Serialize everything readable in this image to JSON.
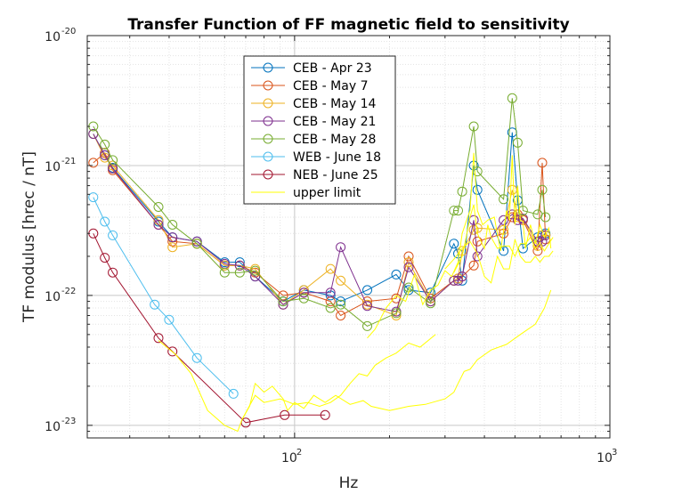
{
  "chart_data": {
    "type": "line",
    "title": "Transfer Function of FF magnetic field to sensitivity",
    "xlabel": "Hz",
    "ylabel": "TF modulus [hrec / nT]",
    "xscale": "log",
    "yscale": "log",
    "xlim": [
      22,
      1000
    ],
    "ylim": [
      8e-24,
      1e-20
    ],
    "grid": true,
    "minor_grid": true,
    "legend_position": "top-center",
    "x_ticks": [
      {
        "value": 100,
        "base": "10",
        "exp": "2"
      },
      {
        "value": 1000,
        "base": "10",
        "exp": "3"
      }
    ],
    "y_ticks": [
      {
        "value": 1e-20,
        "base": "10",
        "exp": "-20"
      },
      {
        "value": 1e-21,
        "base": "10",
        "exp": "-21"
      },
      {
        "value": 1e-22,
        "base": "10",
        "exp": "-22"
      },
      {
        "value": 1e-23,
        "base": "10",
        "exp": "-23"
      }
    ],
    "series": [
      {
        "name": "CEB - Apr 23",
        "color": "#0072BD",
        "markers": true,
        "x": [
          23,
          25,
          26.5,
          37,
          41,
          49,
          60,
          67,
          75,
          92,
          107,
          130,
          140,
          170,
          210,
          230,
          270,
          320,
          330,
          340,
          370,
          380,
          460,
          490,
          510,
          530,
          590,
          610,
          625
        ],
        "y": [
          1.75e-21,
          1.2e-21,
          9.6e-22,
          3.7e-22,
          2.8e-22,
          2.6e-22,
          1.8e-22,
          1.8e-22,
          1.4e-22,
          9e-23,
          1.1e-22,
          1e-22,
          9e-23,
          1.1e-22,
          1.45e-22,
          1.1e-22,
          1.05e-22,
          2.5e-22,
          2.1e-22,
          1.3e-22,
          1e-21,
          6.5e-22,
          2.2e-22,
          1.8e-21,
          5.4e-22,
          2.3e-22,
          2.8e-22,
          2.9e-22,
          3e-22
        ]
      },
      {
        "name": "CEB - May 7",
        "color": "#D95319",
        "markers": true,
        "x": [
          23,
          25,
          26.5,
          37,
          41,
          49,
          60,
          67,
          75,
          92,
          107,
          130,
          140,
          170,
          210,
          230,
          270,
          320,
          330,
          340,
          370,
          380,
          460,
          490,
          510,
          530,
          590,
          610,
          625
        ],
        "y": [
          1.05e-21,
          1.25e-21,
          9.2e-22,
          3.5e-22,
          2.6e-22,
          2.5e-22,
          1.7e-22,
          1.7e-22,
          1.5e-22,
          1e-22,
          1.05e-22,
          9e-23,
          7e-23,
          9e-23,
          9.5e-23,
          2e-22,
          9.5e-23,
          1.3e-22,
          1.35e-22,
          1.4e-22,
          1.7e-22,
          2.6e-22,
          3e-22,
          4e-22,
          4.2e-22,
          3.8e-22,
          2.2e-22,
          1.05e-21,
          2.7e-22
        ]
      },
      {
        "name": "CEB - May 14",
        "color": "#EDB120",
        "markers": true,
        "x": [
          23,
          25,
          26.5,
          37,
          41,
          49,
          60,
          67,
          75,
          92,
          107,
          130,
          140,
          170,
          210,
          230,
          270,
          320,
          330,
          340,
          370,
          380,
          460,
          490,
          510,
          530,
          590,
          610,
          625
        ],
        "y": [
          1.75e-21,
          1.15e-21,
          1e-21,
          3.8e-22,
          2.35e-22,
          2.5e-22,
          1.7e-22,
          1.7e-22,
          1.6e-22,
          8.5e-23,
          1.1e-22,
          1.6e-22,
          1.3e-22,
          8.5e-23,
          7e-23,
          1.8e-22,
          9e-23,
          1.3e-22,
          1.35e-22,
          2.2e-22,
          3.2e-22,
          3.3e-22,
          3.2e-22,
          6.5e-22,
          4e-22,
          3.9e-22,
          2.4e-22,
          2.9e-22,
          2.9e-22
        ]
      },
      {
        "name": "CEB - May 21",
        "color": "#7E2F8E",
        "markers": true,
        "x": [
          23,
          25,
          26.5,
          37,
          41,
          49,
          60,
          67,
          75,
          92,
          107,
          130,
          140,
          170,
          210,
          230,
          270,
          320,
          330,
          340,
          370,
          380,
          460,
          490,
          510,
          530,
          590,
          610,
          625
        ],
        "y": [
          1.75e-21,
          1.2e-21,
          9.5e-22,
          3.5e-22,
          2.8e-22,
          2.6e-22,
          1.75e-22,
          1.7e-22,
          1.4e-22,
          8.5e-23,
          1.05e-22,
          1.05e-22,
          2.35e-22,
          8.3e-23,
          7.5e-23,
          1.65e-22,
          9e-23,
          1.3e-22,
          1.3e-22,
          1.4e-22,
          3.8e-22,
          2e-22,
          3.8e-22,
          4.2e-22,
          3.8e-22,
          3.9e-22,
          2.6e-22,
          2.6e-22,
          2.9e-22
        ]
      },
      {
        "name": "CEB - May 28",
        "color": "#77AC30",
        "markers": true,
        "x": [
          23,
          25,
          26.5,
          37,
          41,
          49,
          60,
          67,
          75,
          92,
          107,
          130,
          140,
          170,
          210,
          230,
          270,
          320,
          330,
          340,
          370,
          380,
          460,
          490,
          510,
          530,
          590,
          610,
          625
        ],
        "y": [
          2e-21,
          1.45e-21,
          1.1e-21,
          4.8e-22,
          3.5e-22,
          2.5e-22,
          1.5e-22,
          1.5e-22,
          1.55e-22,
          9e-23,
          9.5e-23,
          8e-23,
          8.5e-23,
          5.8e-23,
          7.3e-23,
          1.15e-22,
          8.7e-23,
          4.5e-22,
          4.5e-22,
          6.3e-22,
          2e-21,
          9e-22,
          5.5e-22,
          3.3e-21,
          1.5e-21,
          4.5e-22,
          4.2e-22,
          6.5e-22,
          4e-22
        ]
      },
      {
        "name": "WEB - June 18",
        "color": "#4DBEEE",
        "markers": true,
        "x": [
          23,
          25,
          26.5,
          36,
          40,
          49,
          64
        ],
        "y": [
          5.7e-22,
          3.7e-22,
          2.9e-22,
          8.5e-23,
          6.5e-23,
          3.3e-23,
          1.75e-23
        ]
      },
      {
        "name": "NEB - June 25",
        "color": "#A2142F",
        "markers": true,
        "x": [
          23,
          25,
          26.5,
          37,
          41,
          70,
          93,
          125
        ],
        "y": [
          3e-22,
          1.95e-22,
          1.5e-22,
          4.7e-23,
          3.7e-23,
          1.05e-23,
          1.2e-23,
          1.2e-23
        ]
      },
      {
        "name": "upper limit",
        "color": "#FFFF00",
        "markers": false,
        "x": [
          37,
          42,
          47,
          53,
          60,
          66,
          68,
          72,
          75,
          80,
          85,
          92,
          95,
          100,
          107,
          115,
          125,
          135,
          150,
          165,
          175,
          200,
          230,
          260,
          300,
          320,
          330,
          345,
          360,
          380,
          420,
          470,
          520,
          580,
          620,
          650
        ],
        "y": [
          4.5e-23,
          3.5e-23,
          2.5e-23,
          1.3e-23,
          1e-23,
          9e-24,
          1.1e-23,
          1.4e-23,
          2.1e-23,
          1.8e-23,
          2e-23,
          1.6e-23,
          1.3e-23,
          1.5e-23,
          1.35e-23,
          1.7e-23,
          1.5e-23,
          1.7e-23,
          1.45e-23,
          1.55e-23,
          1.4e-23,
          1.3e-23,
          1.4e-23,
          1.45e-23,
          1.6e-23,
          1.8e-23,
          2.1e-23,
          2.6e-23,
          2.7e-23,
          3.2e-23,
          3.8e-23,
          4.2e-23,
          5e-23,
          6e-23,
          8e-23,
          1.1e-22
        ]
      },
      {
        "name": "",
        "color": "#FFFF00",
        "markers": false,
        "x": [
          68,
          75,
          80,
          90,
          100,
          110,
          120,
          130,
          140,
          150,
          160,
          170,
          180,
          195,
          210,
          230,
          250,
          280
        ],
        "y": [
          1.1e-23,
          1.7e-23,
          1.5e-23,
          1.6e-23,
          1.45e-23,
          1.5e-23,
          1.4e-23,
          1.5e-23,
          1.7e-23,
          2.1e-23,
          2.5e-23,
          2.4e-23,
          2.9e-23,
          3.3e-23,
          3.6e-23,
          4.3e-23,
          4e-23,
          5e-23
        ]
      },
      {
        "name": "",
        "color": "#FFFF00",
        "markers": false,
        "x": [
          170,
          180,
          195,
          210,
          225,
          240,
          255,
          270,
          285,
          300,
          315,
          330,
          340,
          350,
          360,
          370,
          380,
          395,
          410,
          430,
          450,
          470,
          480,
          490,
          500,
          510,
          520,
          530,
          540,
          560,
          580,
          600,
          620,
          640,
          650
        ],
        "y": [
          4.7e-23,
          5.5e-23,
          8e-23,
          1e-22,
          9e-23,
          1.45e-22,
          8.5e-23,
          1.1e-22,
          1.2e-22,
          1.55e-22,
          1.4e-22,
          1.8e-22,
          3e-22,
          3.7e-22,
          4.5e-22,
          1.25e-21,
          4.5e-22,
          3.5e-22,
          3.8e-22,
          4e-22,
          2.2e-22,
          4.5e-22,
          3.8e-22,
          1.2e-21,
          3.5e-22,
          7e-22,
          3.8e-22,
          3.7e-22,
          2.3e-22,
          3.5e-22,
          2.5e-22,
          3.5e-22,
          2.8e-22,
          3.3e-22,
          2.3e-22
        ]
      },
      {
        "name": "",
        "color": "#FFFF00",
        "markers": false,
        "x": [
          300,
          320,
          340,
          360,
          380,
          400,
          420,
          440,
          460,
          480,
          500,
          520,
          540,
          560,
          580,
          600,
          620,
          640,
          660
        ],
        "y": [
          1.6e-22,
          1.9e-22,
          2.3e-22,
          2.6e-22,
          2.1e-22,
          1.4e-22,
          1.25e-22,
          2e-22,
          1.6e-22,
          1.6e-22,
          2.7e-22,
          2e-22,
          1.8e-22,
          1.8e-22,
          2e-22,
          1.8e-22,
          2e-22,
          2e-22,
          2.2e-22
        ]
      },
      {
        "name": "",
        "color": "#FFFF00",
        "markers": false,
        "x": [
          320,
          340,
          350,
          360,
          370,
          380,
          390,
          400,
          410,
          420,
          440,
          460,
          480,
          500,
          520,
          540,
          560,
          580,
          600,
          620,
          640,
          660
        ],
        "y": [
          1.5e-22,
          2e-22,
          2.8e-22,
          4e-22,
          5e-22,
          3e-22,
          2.6e-22,
          2.3e-22,
          3.5e-22,
          2.8e-22,
          2.3e-22,
          2.4e-22,
          2.4e-22,
          2e-22,
          2.5e-22,
          2.5e-22,
          2.8e-22,
          2.3e-22,
          2.5e-22,
          2.2e-22,
          2.5e-22,
          2.8e-22
        ]
      }
    ]
  }
}
